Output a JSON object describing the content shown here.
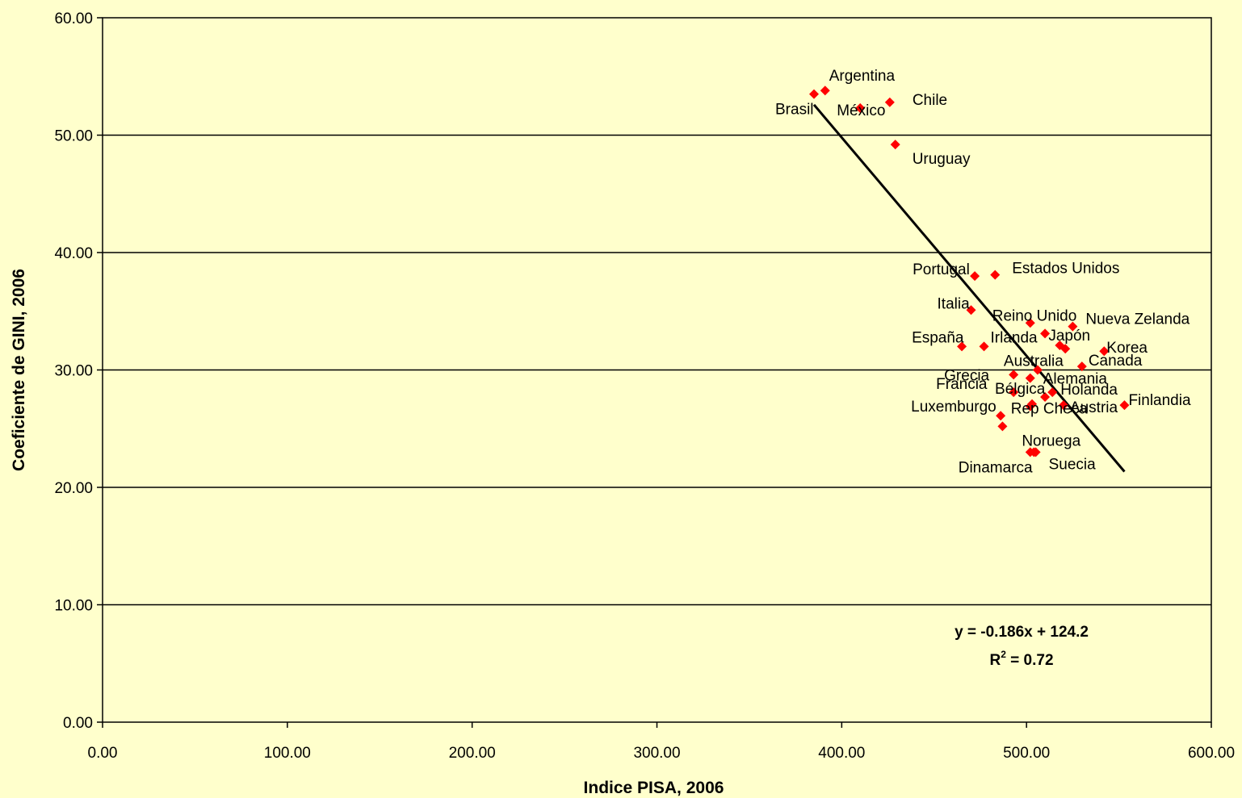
{
  "chart_data": {
    "type": "scatter",
    "title": "",
    "xlabel": "Indice PISA, 2006",
    "ylabel": "Coeficiente de GINI, 2006",
    "xlim": [
      0,
      600
    ],
    "ylim": [
      0,
      60
    ],
    "x_ticks": [
      "0.00",
      "100.00",
      "200.00",
      "300.00",
      "400.00",
      "500.00",
      "600.00"
    ],
    "y_ticks": [
      "0.00",
      "10.00",
      "20.00",
      "30.00",
      "40.00",
      "50.00",
      "60.00"
    ],
    "grid": "horizontal",
    "marker_color": "#FF0000",
    "background_color": "#FFFFCC",
    "series": [
      {
        "points": [
          {
            "label": "Brasil",
            "x": 385,
            "y": 53.5
          },
          {
            "label": "Argentina",
            "x": 391,
            "y": 53.8
          },
          {
            "label": "",
            "x": 410,
            "y": 52.3
          },
          {
            "label": "Chile",
            "x": 426,
            "y": 52.8
          },
          {
            "label": "México",
            "x": 410,
            "y": 52.3
          },
          {
            "label": "Uruguay",
            "x": 429,
            "y": 49.2
          },
          {
            "label": "Portugal",
            "x": 472,
            "y": 38.0
          },
          {
            "label": "Estados Unidos",
            "x": 483,
            "y": 38.1
          },
          {
            "label": "Italia",
            "x": 470,
            "y": 35.1
          },
          {
            "label": "Reino Unido",
            "x": 502,
            "y": 34.0
          },
          {
            "label": "Nueva Zelanda",
            "x": 525,
            "y": 33.7
          },
          {
            "label": "España",
            "x": 465,
            "y": 32.0
          },
          {
            "label": "Irlanda",
            "x": 477,
            "y": 32.0
          },
          {
            "label": "",
            "x": 510,
            "y": 33.1
          },
          {
            "label": "Japón",
            "x": 518,
            "y": 32.1
          },
          {
            "label": "",
            "x": 521,
            "y": 31.8
          },
          {
            "label": "Korea",
            "x": 542,
            "y": 31.6
          },
          {
            "label": "Canada",
            "x": 530,
            "y": 30.3
          },
          {
            "label": "Australia",
            "x": 506,
            "y": 30.0
          },
          {
            "label": "Grecia",
            "x": 493,
            "y": 29.6
          },
          {
            "label": "Alemania",
            "x": 502,
            "y": 29.3
          },
          {
            "label": "Francia",
            "x": 493,
            "y": 28.1
          },
          {
            "label": "Bélgica",
            "x": 510,
            "y": 27.7
          },
          {
            "label": "Holanda",
            "x": 514,
            "y": 28.1
          },
          {
            "label": "Austria",
            "x": 520,
            "y": 27.0
          },
          {
            "label": "Finlandia",
            "x": 553,
            "y": 27.0
          },
          {
            "label": "",
            "x": 503,
            "y": 27.1
          },
          {
            "label": "Luxemburgo",
            "x": 486,
            "y": 26.1
          },
          {
            "label": "Rep Checa",
            "x": 502,
            "y": 26.9
          },
          {
            "label": "",
            "x": 487,
            "y": 25.2
          },
          {
            "label": "Noruega",
            "x": 504,
            "y": 23.0
          },
          {
            "label": "Dinamarca",
            "x": 502,
            "y": 23.0
          },
          {
            "label": "Suecia",
            "x": 505,
            "y": 23.0
          }
        ]
      }
    ],
    "trendline": {
      "x_start": 385,
      "x_end": 553,
      "slope": -0.186,
      "intercept": 124.2,
      "equation": "y = -0.186x + 124.2",
      "r2_prefix": "R",
      "r2_exp": "2",
      "r2_value": " = 0.72"
    }
  }
}
